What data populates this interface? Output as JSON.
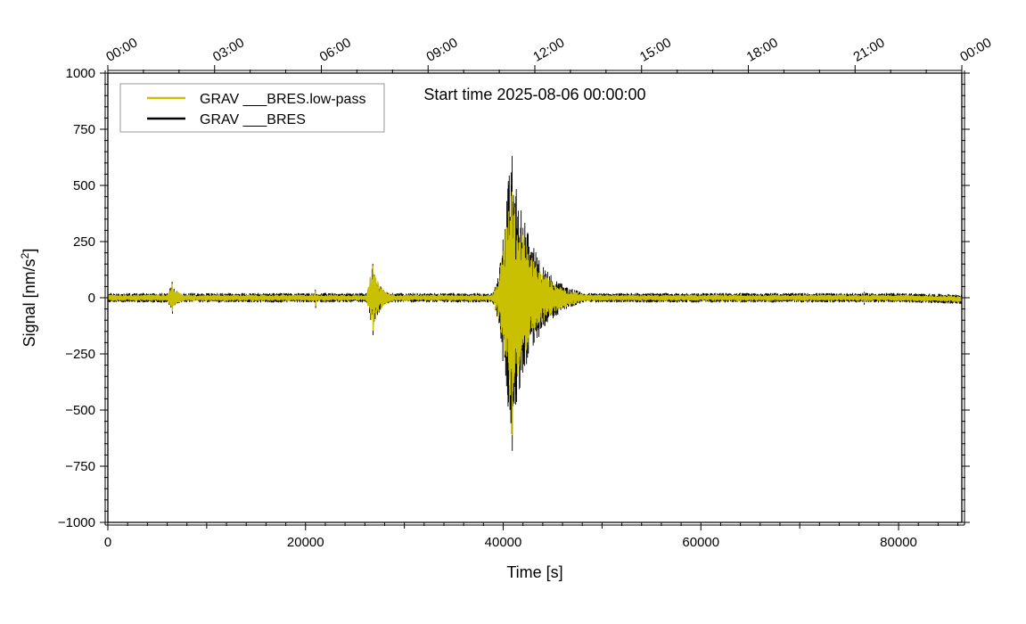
{
  "chart_data": {
    "type": "line",
    "title": "Start time 2025-08-06 00:00:00",
    "xlabel": "Time [s]",
    "ylabel_prefix": "Signal [nm/s",
    "ylabel_exponent": "2",
    "ylabel_suffix": "]",
    "xlim": [
      0,
      86400
    ],
    "ylim": [
      -1000,
      1000
    ],
    "x_ticks": [
      0,
      20000,
      40000,
      60000,
      80000
    ],
    "x_tick_labels": [
      "0",
      "20000",
      "40000",
      "60000",
      "80000"
    ],
    "y_ticks": [
      1000,
      750,
      500,
      250,
      0,
      -250,
      -500,
      -750,
      -1000
    ],
    "y_tick_labels": [
      "1000",
      "750",
      "500",
      "250",
      "0",
      "−250",
      "−500",
      "−750",
      "−1000"
    ],
    "top_axis_ticks_s": [
      0,
      10800,
      21600,
      32400,
      43200,
      54000,
      64800,
      75600,
      86400
    ],
    "top_axis_labels": [
      "00:00",
      "03:00",
      "06:00",
      "09:00",
      "12:00",
      "15:00",
      "18:00",
      "21:00",
      "00:00"
    ],
    "legend_placement": "top-left",
    "grid": false,
    "series": [
      {
        "name": "GRAV ___BRES",
        "color": "#000000",
        "role": "raw",
        "events": [
          {
            "time_s": 6500,
            "peak_pos": 70,
            "peak_neg": -70
          },
          {
            "time_s": 21000,
            "peak_pos": 35,
            "peak_neg": -45
          },
          {
            "time_s": 26800,
            "peak_pos": 150,
            "peak_neg": -165
          },
          {
            "time_s": 40900,
            "peak_pos": 630,
            "peak_neg": -680
          },
          {
            "time_s": 64000,
            "peak_pos": 20,
            "peak_neg": -20
          },
          {
            "time_s": 76500,
            "peak_pos": 25,
            "peak_neg": -30
          }
        ],
        "noise_band": 20
      },
      {
        "name": "GRAV ___BRES.low-pass",
        "color": "#c8c000",
        "role": "filtered",
        "events": [
          {
            "time_s": 6500,
            "peak_pos": 60,
            "peak_neg": -60
          },
          {
            "time_s": 21000,
            "peak_pos": 28,
            "peak_neg": -35
          },
          {
            "time_s": 26800,
            "peak_pos": 140,
            "peak_neg": -145
          },
          {
            "time_s": 40900,
            "peak_pos": 470,
            "peak_neg": -610
          },
          {
            "time_s": 64000,
            "peak_pos": 15,
            "peak_neg": -15
          },
          {
            "time_s": 76500,
            "peak_pos": 20,
            "peak_neg": -22
          }
        ],
        "noise_band": 12
      }
    ]
  }
}
